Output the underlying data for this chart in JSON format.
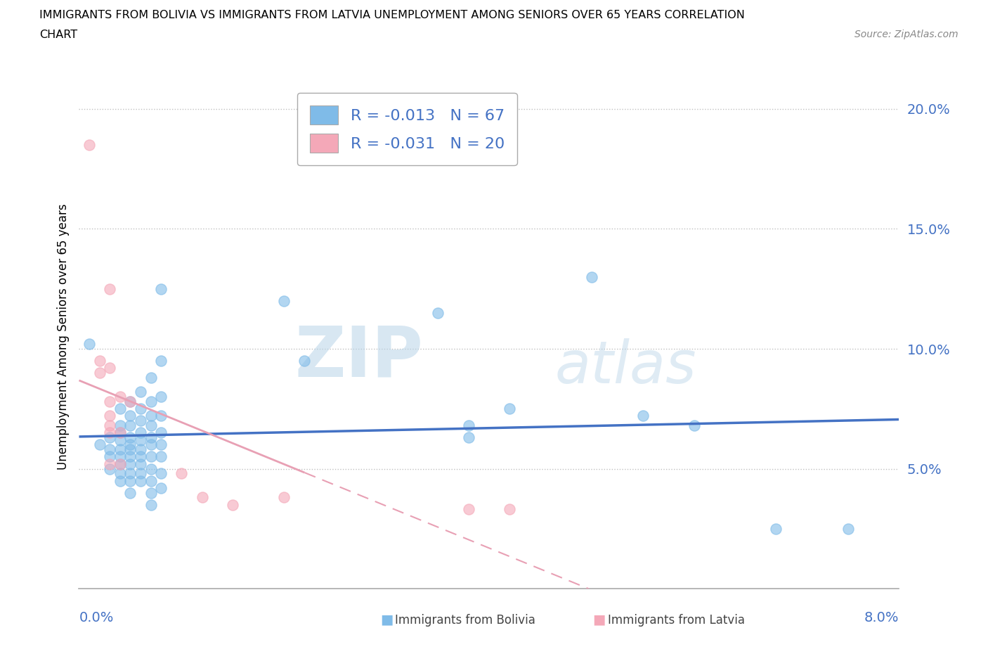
{
  "title_line1": "IMMIGRANTS FROM BOLIVIA VS IMMIGRANTS FROM LATVIA UNEMPLOYMENT AMONG SENIORS OVER 65 YEARS CORRELATION",
  "title_line2": "CHART",
  "source": "Source: ZipAtlas.com",
  "ylabel": "Unemployment Among Seniors over 65 years",
  "xlim": [
    0.0,
    0.08
  ],
  "ylim": [
    0.0,
    0.21
  ],
  "bolivia_color": "#7fbbe8",
  "latvia_color": "#f4a8b8",
  "bolivia_line_color": "#4472c4",
  "latvia_line_color": "#e8a0b4",
  "tick_color": "#4472c4",
  "bolivia_R": -0.013,
  "bolivia_N": 67,
  "latvia_R": -0.031,
  "latvia_N": 20,
  "yticks": [
    0.05,
    0.1,
    0.15,
    0.2
  ],
  "ytick_labels": [
    "5.0%",
    "10.0%",
    "15.0%",
    "20.0%"
  ],
  "watermark_zip": "ZIP",
  "watermark_atlas": "atlas",
  "bolivia_scatter": [
    [
      0.001,
      0.102
    ],
    [
      0.002,
      0.06
    ],
    [
      0.003,
      0.063
    ],
    [
      0.003,
      0.058
    ],
    [
      0.003,
      0.055
    ],
    [
      0.003,
      0.05
    ],
    [
      0.004,
      0.075
    ],
    [
      0.004,
      0.068
    ],
    [
      0.004,
      0.065
    ],
    [
      0.004,
      0.062
    ],
    [
      0.004,
      0.058
    ],
    [
      0.004,
      0.055
    ],
    [
      0.004,
      0.052
    ],
    [
      0.004,
      0.048
    ],
    [
      0.004,
      0.045
    ],
    [
      0.005,
      0.078
    ],
    [
      0.005,
      0.072
    ],
    [
      0.005,
      0.068
    ],
    [
      0.005,
      0.063
    ],
    [
      0.005,
      0.06
    ],
    [
      0.005,
      0.058
    ],
    [
      0.005,
      0.055
    ],
    [
      0.005,
      0.052
    ],
    [
      0.005,
      0.048
    ],
    [
      0.005,
      0.045
    ],
    [
      0.005,
      0.04
    ],
    [
      0.006,
      0.082
    ],
    [
      0.006,
      0.075
    ],
    [
      0.006,
      0.07
    ],
    [
      0.006,
      0.065
    ],
    [
      0.006,
      0.062
    ],
    [
      0.006,
      0.058
    ],
    [
      0.006,
      0.055
    ],
    [
      0.006,
      0.052
    ],
    [
      0.006,
      0.048
    ],
    [
      0.006,
      0.045
    ],
    [
      0.007,
      0.088
    ],
    [
      0.007,
      0.078
    ],
    [
      0.007,
      0.072
    ],
    [
      0.007,
      0.068
    ],
    [
      0.007,
      0.063
    ],
    [
      0.007,
      0.06
    ],
    [
      0.007,
      0.055
    ],
    [
      0.007,
      0.05
    ],
    [
      0.007,
      0.045
    ],
    [
      0.007,
      0.04
    ],
    [
      0.007,
      0.035
    ],
    [
      0.008,
      0.125
    ],
    [
      0.008,
      0.095
    ],
    [
      0.008,
      0.08
    ],
    [
      0.008,
      0.072
    ],
    [
      0.008,
      0.065
    ],
    [
      0.008,
      0.06
    ],
    [
      0.008,
      0.055
    ],
    [
      0.008,
      0.048
    ],
    [
      0.008,
      0.042
    ],
    [
      0.02,
      0.12
    ],
    [
      0.022,
      0.095
    ],
    [
      0.035,
      0.115
    ],
    [
      0.038,
      0.068
    ],
    [
      0.038,
      0.063
    ],
    [
      0.042,
      0.075
    ],
    [
      0.05,
      0.13
    ],
    [
      0.055,
      0.072
    ],
    [
      0.06,
      0.068
    ],
    [
      0.068,
      0.025
    ],
    [
      0.075,
      0.025
    ]
  ],
  "latvia_scatter": [
    [
      0.001,
      0.185
    ],
    [
      0.002,
      0.095
    ],
    [
      0.002,
      0.09
    ],
    [
      0.003,
      0.125
    ],
    [
      0.003,
      0.092
    ],
    [
      0.003,
      0.078
    ],
    [
      0.003,
      0.072
    ],
    [
      0.003,
      0.068
    ],
    [
      0.003,
      0.065
    ],
    [
      0.003,
      0.052
    ],
    [
      0.004,
      0.08
    ],
    [
      0.004,
      0.065
    ],
    [
      0.004,
      0.052
    ],
    [
      0.005,
      0.078
    ],
    [
      0.01,
      0.048
    ],
    [
      0.012,
      0.038
    ],
    [
      0.015,
      0.035
    ],
    [
      0.02,
      0.038
    ],
    [
      0.038,
      0.033
    ],
    [
      0.042,
      0.033
    ]
  ]
}
